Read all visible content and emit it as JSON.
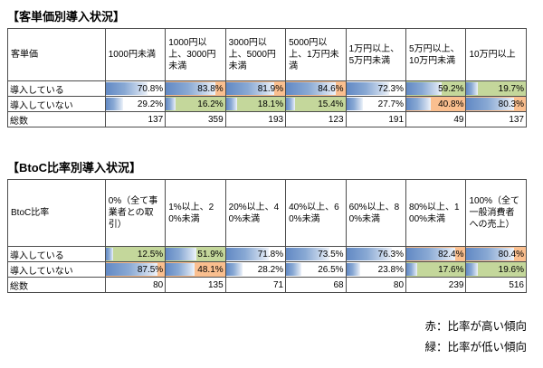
{
  "legend": {
    "high": "赤：比率が高い傾向",
    "low": "緑：比率が低い傾向"
  },
  "colors": {
    "bar_blue": "#6289c4",
    "flag_high": "#fabf8f",
    "flag_low": "#c4d79b",
    "border": "#4d4d4d"
  },
  "tables": [
    {
      "title": "【客単価別導入状況】",
      "corner": "客単価",
      "columns": [
        "1000円未満",
        "1000円以上、3000円未満",
        "3000円以上、5000円未満",
        "5000円以上、1万円未満",
        "1万円以上、5万円未満",
        "5万円以上、10万円未満",
        "10万円以上"
      ],
      "rows": [
        {
          "label": "導入している",
          "cells": [
            {
              "value": "70.8%",
              "pct": 70.8,
              "flag": "none"
            },
            {
              "value": "83.8%",
              "pct": 83.8,
              "flag": "high"
            },
            {
              "value": "81.9%",
              "pct": 81.9,
              "flag": "high"
            },
            {
              "value": "84.6%",
              "pct": 84.6,
              "flag": "high"
            },
            {
              "value": "72.3%",
              "pct": 72.3,
              "flag": "none"
            },
            {
              "value": "59.2%",
              "pct": 59.2,
              "flag": "low"
            },
            {
              "value": "19.7%",
              "pct": 19.7,
              "flag": "low"
            }
          ]
        },
        {
          "label": "導入していない",
          "cells": [
            {
              "value": "29.2%",
              "pct": 29.2,
              "flag": "none"
            },
            {
              "value": "16.2%",
              "pct": 16.2,
              "flag": "low"
            },
            {
              "value": "18.1%",
              "pct": 18.1,
              "flag": "low"
            },
            {
              "value": "15.4%",
              "pct": 15.4,
              "flag": "low"
            },
            {
              "value": "27.7%",
              "pct": 27.7,
              "flag": "none"
            },
            {
              "value": "40.8%",
              "pct": 40.8,
              "flag": "high"
            },
            {
              "value": "80.3%",
              "pct": 80.3,
              "flag": "high"
            }
          ]
        },
        {
          "label": "総数",
          "cells": [
            {
              "value": "137"
            },
            {
              "value": "359"
            },
            {
              "value": "193"
            },
            {
              "value": "123"
            },
            {
              "value": "191"
            },
            {
              "value": "49"
            },
            {
              "value": "137"
            }
          ]
        }
      ]
    },
    {
      "title": "【BtoC比率別導入状況】",
      "corner": "BtoC比率",
      "columns": [
        "0%（全て事業者との取引）",
        "1%以上、20%未満",
        "20%以上、40%未満",
        "40%以上、60%未満",
        "60%以上、80%未満",
        "80%以上、100%未満",
        "100%（全て一般消費者への売上）"
      ],
      "rows": [
        {
          "label": "導入している",
          "cells": [
            {
              "value": "12.5%",
              "pct": 12.5,
              "flag": "low"
            },
            {
              "value": "51.9%",
              "pct": 51.9,
              "flag": "low"
            },
            {
              "value": "71.8%",
              "pct": 71.8,
              "flag": "none"
            },
            {
              "value": "73.5%",
              "pct": 73.5,
              "flag": "none"
            },
            {
              "value": "76.3%",
              "pct": 76.3,
              "flag": "none"
            },
            {
              "value": "82.4%",
              "pct": 82.4,
              "flag": "high"
            },
            {
              "value": "80.4%",
              "pct": 80.4,
              "flag": "high"
            }
          ]
        },
        {
          "label": "導入していない",
          "cells": [
            {
              "value": "87.5%",
              "pct": 87.5,
              "flag": "high"
            },
            {
              "value": "48.1%",
              "pct": 48.1,
              "flag": "high"
            },
            {
              "value": "28.2%",
              "pct": 28.2,
              "flag": "none"
            },
            {
              "value": "26.5%",
              "pct": 26.5,
              "flag": "none"
            },
            {
              "value": "23.8%",
              "pct": 23.8,
              "flag": "none"
            },
            {
              "value": "17.6%",
              "pct": 17.6,
              "flag": "low"
            },
            {
              "value": "19.6%",
              "pct": 19.6,
              "flag": "low"
            }
          ]
        },
        {
          "label": "総数",
          "cells": [
            {
              "value": "80"
            },
            {
              "value": "135"
            },
            {
              "value": "71"
            },
            {
              "value": "68"
            },
            {
              "value": "80"
            },
            {
              "value": "239"
            },
            {
              "value": "516"
            }
          ]
        }
      ]
    }
  ],
  "chart_data": [
    {
      "type": "table",
      "title": "客単価別導入状況",
      "categories": [
        "1000円未満",
        "1000円以上、3000円未満",
        "3000円以上、5000円未満",
        "5000円以上、1万円未満",
        "1万円以上、5万円未満",
        "5万円以上、10万円未満",
        "10万円以上"
      ],
      "series": [
        {
          "name": "導入している",
          "unit": "%",
          "values": [
            70.8,
            83.8,
            81.9,
            84.6,
            72.3,
            59.2,
            19.7
          ]
        },
        {
          "name": "導入していない",
          "unit": "%",
          "values": [
            29.2,
            16.2,
            18.1,
            15.4,
            27.7,
            40.8,
            80.3
          ]
        },
        {
          "name": "総数",
          "values": [
            137,
            359,
            193,
            123,
            191,
            49,
            137
          ]
        }
      ],
      "notes": "セル内に0〜100%スケールの青いデータバー。赤背景=比率が高い傾向、緑背景=比率が低い傾向"
    },
    {
      "type": "table",
      "title": "BtoC比率別導入状況",
      "categories": [
        "0%（全て事業者との取引）",
        "1%以上、20%未満",
        "20%以上、40%未満",
        "40%以上、60%未満",
        "60%以上、80%未満",
        "80%以上、100%未満",
        "100%（全て一般消費者への売上）"
      ],
      "series": [
        {
          "name": "導入している",
          "unit": "%",
          "values": [
            12.5,
            51.9,
            71.8,
            73.5,
            76.3,
            82.4,
            80.4
          ]
        },
        {
          "name": "導入していない",
          "unit": "%",
          "values": [
            87.5,
            48.1,
            28.2,
            26.5,
            23.8,
            17.6,
            19.6
          ]
        },
        {
          "name": "総数",
          "values": [
            80,
            135,
            71,
            68,
            80,
            239,
            516
          ]
        }
      ],
      "notes": "セル内に0〜100%スケールの青いデータバー。赤背景=比率が高い傾向、緑背景=比率が低い傾向"
    }
  ]
}
